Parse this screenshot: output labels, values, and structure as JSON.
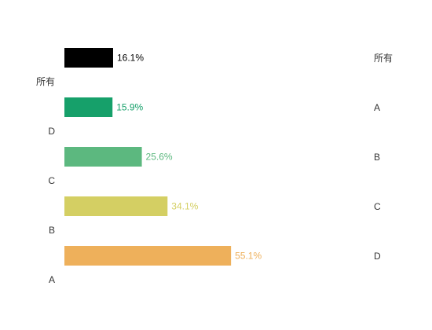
{
  "chart_data": {
    "type": "bar",
    "orientation": "horizontal",
    "categories": [
      "所有",
      "D",
      "C",
      "B",
      "A"
    ],
    "values": [
      16.1,
      15.9,
      25.6,
      34.1,
      55.1
    ],
    "value_labels": [
      "16.1%",
      "15.9%",
      "25.6%",
      "34.1%",
      "55.1%"
    ],
    "colors": [
      "#000000",
      "#16a06a",
      "#5cb87f",
      "#d4cf63",
      "#eeb05b"
    ],
    "label_colors": [
      "#000000",
      "#16a06a",
      "#5cb87f",
      "#d4cf63",
      "#eeb05b"
    ],
    "xlim": [
      0,
      100
    ],
    "grid": false,
    "title": "",
    "xlabel": "",
    "ylabel": "",
    "legend": {
      "placement": "right",
      "items": [
        "所有",
        "A",
        "B",
        "C",
        "D"
      ]
    }
  }
}
